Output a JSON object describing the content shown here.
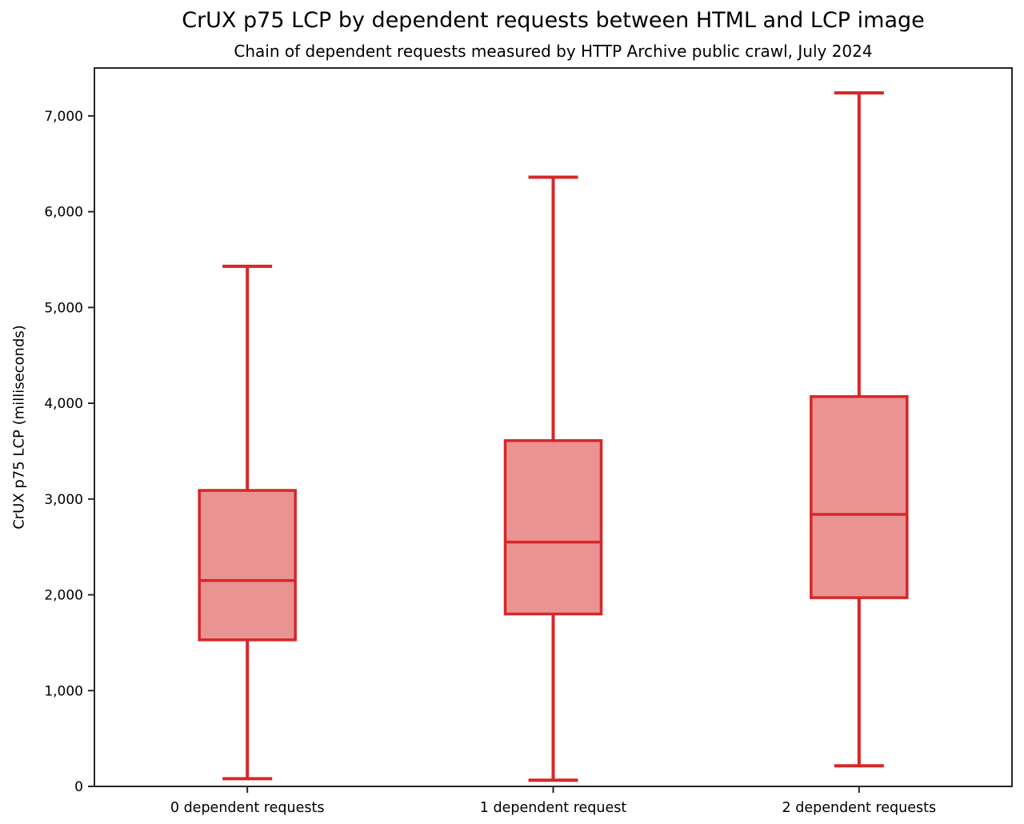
{
  "chart_data": {
    "type": "box",
    "title": "CrUX p75 LCP by dependent requests between HTML and LCP image",
    "subtitle": "Chain of dependent requests measured by HTTP Archive public crawl, July 2024",
    "ylabel": "CrUX p75 LCP (milliseconds)",
    "xlabel": "",
    "categories": [
      "0 dependent requests",
      "1 dependent request",
      "2 dependent requests"
    ],
    "series": [
      {
        "name": "0 dependent requests",
        "whisker_low": 80,
        "q1": 1530,
        "median": 2150,
        "q3": 3090,
        "whisker_high": 5430
      },
      {
        "name": "1 dependent request",
        "whisker_low": 65,
        "q1": 1800,
        "median": 2550,
        "q3": 3610,
        "whisker_high": 6360
      },
      {
        "name": "2 dependent requests",
        "whisker_low": 215,
        "q1": 1970,
        "median": 2840,
        "q3": 4070,
        "whisker_high": 7240
      }
    ],
    "ylim": [
      0,
      7500
    ],
    "yticks": [
      0,
      1000,
      2000,
      3000,
      4000,
      5000,
      6000,
      7000
    ],
    "grid": false,
    "legend": "none",
    "colors": {
      "box_edge": "#d62728",
      "box_fill": "#ea9393",
      "axis": "#262626",
      "text": "#000000"
    }
  }
}
